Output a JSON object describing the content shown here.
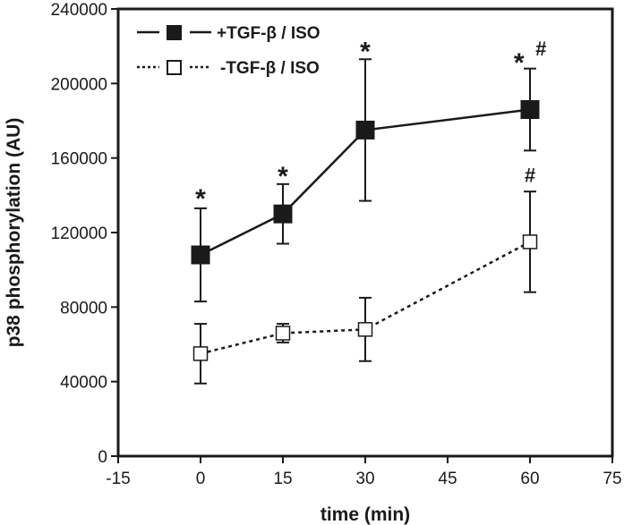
{
  "chart_data": {
    "type": "line",
    "title": "",
    "xlabel": "time (min)",
    "ylabel": "p38 phosphorylation (AU)",
    "xlim": [
      -15,
      75
    ],
    "ylim": [
      0,
      240000
    ],
    "x_ticks": [
      -15,
      0,
      15,
      30,
      45,
      60,
      75
    ],
    "x_tick_labels": [
      "-15",
      "0",
      "15",
      "30",
      "45",
      "60",
      "75"
    ],
    "y_ticks": [
      0,
      40000,
      80000,
      120000,
      160000,
      200000,
      240000
    ],
    "y_tick_labels": [
      "0",
      "40000",
      "80000",
      "120000",
      "160000",
      "200000",
      "240000"
    ],
    "grid": false,
    "legend_position": "top-left",
    "series": [
      {
        "name": "+TGF-β / ISO",
        "line_style": "solid",
        "marker": "filled-square",
        "color": "#1a1a1a",
        "x": [
          0,
          15,
          30,
          60
        ],
        "y": [
          108000,
          130000,
          175000,
          186000
        ],
        "err": [
          25000,
          16000,
          38000,
          22000
        ]
      },
      {
        "name": "-TGF-β / ISO",
        "line_style": "dotted",
        "marker": "open-square",
        "color": "#1a1a1a",
        "x": [
          0,
          15,
          30,
          60
        ],
        "y": [
          55000,
          66000,
          68000,
          115000
        ],
        "err": [
          16000,
          5000,
          17000,
          27000
        ]
      }
    ],
    "annotations": [
      {
        "text": "*",
        "x": 0,
        "y": 143000,
        "kind": "star"
      },
      {
        "text": "*",
        "x": 15,
        "y": 155000,
        "kind": "star"
      },
      {
        "text": "*",
        "x": 30,
        "y": 222000,
        "kind": "star"
      },
      {
        "text": "*",
        "x": 58,
        "y": 216000,
        "kind": "star"
      },
      {
        "text": "#",
        "x": 62,
        "y": 219000,
        "kind": "hash"
      },
      {
        "text": "#",
        "x": 60,
        "y": 151000,
        "kind": "hash"
      }
    ]
  }
}
